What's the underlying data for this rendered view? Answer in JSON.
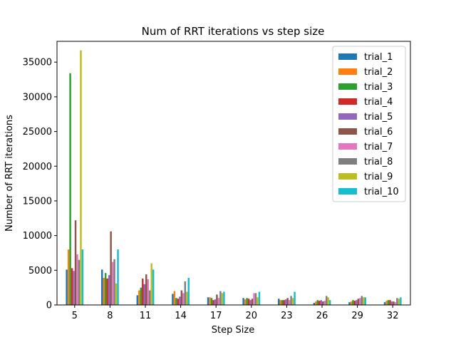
{
  "chart_data": {
    "type": "bar",
    "title": "Num of RRT iterations vs step size",
    "xlabel": "Step Size",
    "ylabel": "Number of RRT iterations",
    "categories": [
      "5",
      "8",
      "11",
      "14",
      "17",
      "20",
      "23",
      "26",
      "29",
      "32"
    ],
    "ylim": [
      0,
      38000
    ],
    "yticks": [
      0,
      5000,
      10000,
      15000,
      20000,
      25000,
      30000,
      35000
    ],
    "grid": false,
    "legend_position": "top-right",
    "series": [
      {
        "name": "trial_1",
        "color": "#1f77b4",
        "values": [
          5100,
          5100,
          1400,
          1600,
          1100,
          1000,
          900,
          300,
          400,
          400
        ]
      },
      {
        "name": "trial_2",
        "color": "#ff7f0e",
        "values": [
          8000,
          3900,
          2100,
          2000,
          1100,
          800,
          700,
          500,
          500,
          600
        ]
      },
      {
        "name": "trial_3",
        "color": "#2ca02c",
        "values": [
          33400,
          4600,
          2500,
          1000,
          1000,
          1000,
          700,
          700,
          700,
          700
        ]
      },
      {
        "name": "trial_4",
        "color": "#d62728",
        "values": [
          5300,
          3800,
          3800,
          900,
          700,
          900,
          700,
          600,
          600,
          700
        ]
      },
      {
        "name": "trial_5",
        "color": "#9467bd",
        "values": [
          4900,
          4300,
          3000,
          1200,
          800,
          700,
          800,
          700,
          700,
          500
        ]
      },
      {
        "name": "trial_6",
        "color": "#8c564b",
        "values": [
          12200,
          10600,
          4400,
          2100,
          1500,
          900,
          1000,
          500,
          900,
          500
        ]
      },
      {
        "name": "trial_7",
        "color": "#e377c2",
        "values": [
          7300,
          6200,
          3700,
          1700,
          1000,
          1700,
          700,
          600,
          1000,
          400
        ]
      },
      {
        "name": "trial_8",
        "color": "#7f7f7f",
        "values": [
          6500,
          6600,
          2100,
          3400,
          2000,
          1700,
          1300,
          1300,
          1300,
          1000
        ]
      },
      {
        "name": "trial_9",
        "color": "#bcbd22",
        "values": [
          36700,
          3100,
          6000,
          1900,
          1700,
          1100,
          1000,
          1100,
          1100,
          900
        ]
      },
      {
        "name": "trial_10",
        "color": "#17becf",
        "values": [
          8000,
          8000,
          5100,
          3900,
          1900,
          1900,
          1900,
          700,
          1100,
          1100
        ]
      }
    ]
  }
}
